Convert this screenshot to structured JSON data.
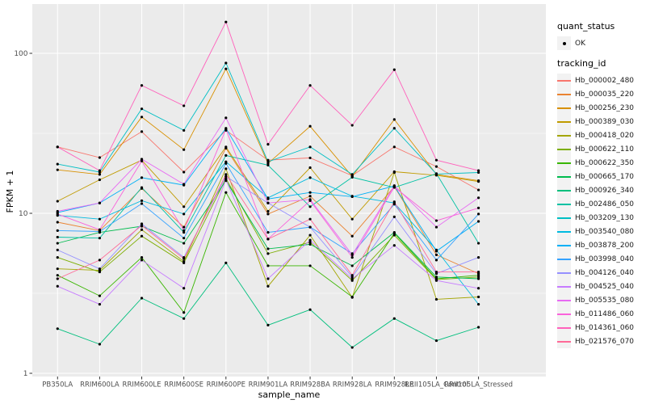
{
  "legend": {
    "quant_status_title": "quant_status",
    "quant_status_value": "OK",
    "tracking_title": "tracking_id"
  },
  "chart_data": {
    "type": "line",
    "title": "",
    "xlabel": "sample_name",
    "ylabel": "FPKM + 1",
    "yscale": "log10",
    "ylim": [
      0.95,
      196
    ],
    "grid": "white major and minor gridlines on gray panel",
    "legend_position": "right",
    "panel_bg": "#EBEBEB",
    "point_color": "#000000",
    "quant_status": "OK",
    "y_ticks": [
      {
        "v": 100,
        "label": "100"
      },
      {
        "v": 10,
        "label": "10"
      },
      {
        "v": 1,
        "label": "1"
      }
    ],
    "y_minor": [
      3.1623,
      31.623
    ],
    "categories": [
      "PB350LA",
      "RRIM600LA",
      "RRIM600LE",
      "RRIM600SE",
      "RRIM600PE",
      "RRIM901LA",
      "RRIM928BA",
      "RRIM928LA",
      "RRIM928LE",
      "RRII105LA_Control",
      "RRII105LA_Stressed"
    ],
    "series": [
      {
        "name": "Hb_000002_480",
        "color": "#F8766D",
        "values": [
          26,
          22.3,
          32.4,
          18.1,
          33,
          21.5,
          22.2,
          17.2,
          26,
          19.6,
          14
        ]
      },
      {
        "name": "Hb_000035_220",
        "color": "#EA8331",
        "values": [
          8.8,
          7.8,
          14.3,
          8.2,
          25.5,
          9.9,
          12.8,
          7.2,
          14.7,
          5.5,
          4.2
        ]
      },
      {
        "name": "Hb_000256_230",
        "color": "#D89000",
        "values": [
          18.7,
          17.5,
          40,
          25,
          80,
          20.5,
          35,
          17,
          38.6,
          17.5,
          16
        ]
      },
      {
        "name": "Hb_000389_030",
        "color": "#C09B00",
        "values": [
          11.9,
          16.2,
          21.5,
          11,
          26,
          10.3,
          19.3,
          9.2,
          18.2,
          17.3,
          15.8
        ]
      },
      {
        "name": "Hb_000418_020",
        "color": "#A3A500",
        "values": [
          4.5,
          4.4,
          7.9,
          5,
          19,
          3.5,
          7.3,
          2.98,
          18,
          2.9,
          3
        ]
      },
      {
        "name": "Hb_000622_110",
        "color": "#7CAE00",
        "values": [
          5.3,
          4.3,
          7.2,
          4.9,
          16.5,
          5.6,
          6.6,
          3.8,
          7.3,
          3.85,
          4
        ]
      },
      {
        "name": "Hb_000622_350",
        "color": "#39B600",
        "values": [
          4.1,
          3.05,
          5.3,
          2.4,
          13.5,
          4.7,
          4.7,
          3,
          7.5,
          3.9,
          4.1
        ]
      },
      {
        "name": "Hb_000665_170",
        "color": "#00BB4E",
        "values": [
          6.5,
          7.6,
          8.3,
          6.5,
          16,
          6,
          6.4,
          4.7,
          7.6,
          4,
          3.9
        ]
      },
      {
        "name": "Hb_000926_340",
        "color": "#00BF7D",
        "values": [
          1.9,
          1.52,
          2.95,
          2.2,
          4.9,
          2,
          2.5,
          1.45,
          2.2,
          1.6,
          1.94
        ]
      },
      {
        "name": "Hb_002486_050",
        "color": "#00C1A3",
        "values": [
          7.1,
          7,
          14.5,
          7.6,
          23,
          20,
          11,
          16.8,
          14.5,
          17.7,
          6.5
        ]
      },
      {
        "name": "Hb_003209_130",
        "color": "#00BFC4",
        "values": [
          20.3,
          18.1,
          45,
          33,
          87,
          21,
          26,
          17.5,
          34,
          17.6,
          18
        ]
      },
      {
        "name": "Hb_003540_080",
        "color": "#00BAE0",
        "values": [
          9.7,
          9.2,
          12,
          9.9,
          21,
          12.5,
          16.7,
          12.8,
          11.6,
          5.9,
          2.7
        ]
      },
      {
        "name": "Hb_003878_200",
        "color": "#00B0F6",
        "values": [
          10.1,
          11.6,
          16.7,
          15,
          34,
          12.3,
          13.5,
          12.7,
          14.8,
          5.8,
          8.9
        ]
      },
      {
        "name": "Hb_003998_040",
        "color": "#35A2FF",
        "values": [
          7.8,
          7.7,
          11.5,
          7,
          20.5,
          7.6,
          8.2,
          5.6,
          11.4,
          5.1,
          9.9
        ]
      },
      {
        "name": "Hb_004126_040",
        "color": "#9590FF",
        "values": [
          5.9,
          4.5,
          8.6,
          5.3,
          17,
          11.6,
          8.2,
          4,
          9.5,
          4.2,
          5.3
        ]
      },
      {
        "name": "Hb_004525_040",
        "color": "#C77CFF",
        "values": [
          3.5,
          2.7,
          5.1,
          3.4,
          16.2,
          3.9,
          6.8,
          3.9,
          6.3,
          3.8,
          3.4
        ]
      },
      {
        "name": "Hb_005535_080",
        "color": "#E76BF3",
        "values": [
          10.3,
          11.6,
          21.8,
          15.2,
          39.5,
          11.6,
          12.2,
          5.5,
          14.9,
          8.2,
          12.5
        ]
      },
      {
        "name": "Hb_011486_060",
        "color": "#FA62DB",
        "values": [
          9.9,
          7.9,
          21.2,
          7.8,
          33.5,
          6.9,
          12,
          5.3,
          14.6,
          9,
          10.8
        ]
      },
      {
        "name": "Hb_014361_060",
        "color": "#FF62BC",
        "values": [
          26,
          18.5,
          63,
          47,
          157,
          27,
          63,
          35.5,
          79,
          21.5,
          18.5
        ]
      },
      {
        "name": "Hb_021576_070",
        "color": "#FF6A98",
        "values": [
          3.9,
          5.1,
          8.4,
          5.2,
          17.5,
          6.9,
          9.2,
          4.1,
          11.8,
          4.3,
          4.3
        ]
      }
    ]
  }
}
